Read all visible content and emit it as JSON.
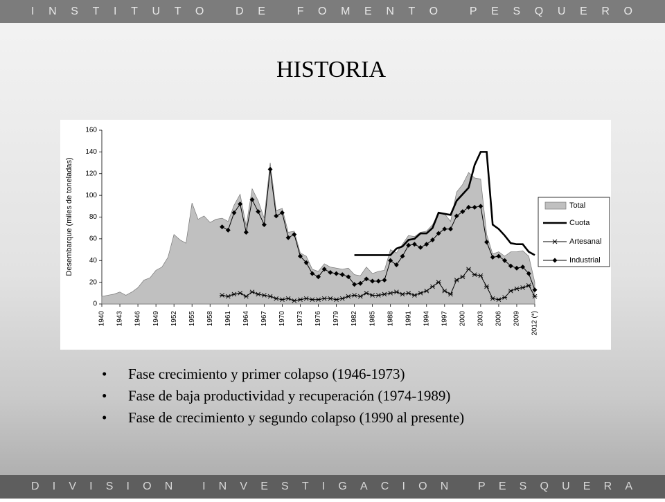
{
  "header": "INSTITUTO DE FOMENTO PESQUERO",
  "title": "HISTORIA",
  "chart_data": {
    "type": "line",
    "y_label": "Desembarque (miles de toneladas)",
    "ylim": [
      0,
      160
    ],
    "yticks": [
      0,
      20,
      40,
      60,
      80,
      100,
      120,
      140,
      160
    ],
    "grid": false,
    "legend": "right",
    "categories": [
      "1940",
      null,
      null,
      "1943",
      null,
      null,
      "1946",
      null,
      null,
      "1949",
      null,
      null,
      "1952",
      null,
      null,
      "1955",
      null,
      null,
      "1958",
      null,
      null,
      "1961",
      null,
      null,
      "1964",
      null,
      null,
      "1967",
      null,
      null,
      "1970",
      null,
      null,
      "1973",
      null,
      null,
      "1976",
      null,
      null,
      "1979",
      null,
      null,
      "1982",
      null,
      null,
      "1985",
      null,
      null,
      "1988",
      null,
      null,
      "1991",
      null,
      null,
      "1994",
      null,
      null,
      "1997",
      null,
      null,
      "2000",
      null,
      null,
      "2003",
      null,
      null,
      "2006",
      null,
      null,
      "2009",
      null,
      null,
      "2012 (*)"
    ],
    "series": [
      {
        "name": "Total",
        "type": "area",
        "color": "#c0c0c0",
        "values": [
          7,
          8,
          9,
          11,
          8,
          11,
          15,
          22,
          24,
          31,
          34,
          43,
          64,
          59,
          56,
          93,
          78,
          81,
          75,
          78,
          79,
          76,
          91,
          101,
          72,
          106,
          95,
          79,
          130,
          86,
          88,
          66,
          67,
          47,
          44,
          32,
          30,
          37,
          34,
          33,
          32,
          33,
          27,
          26,
          34,
          28,
          30,
          31,
          50,
          47,
          55,
          63,
          62,
          66,
          67,
          73,
          83,
          83,
          76,
          103,
          110,
          121,
          116,
          115,
          64,
          46,
          48,
          44,
          48,
          48,
          49,
          44,
          20
        ]
      },
      {
        "name": "Cuota",
        "type": "line",
        "color": "#000000",
        "marker": "none",
        "values": [
          null,
          null,
          null,
          null,
          null,
          null,
          null,
          null,
          null,
          null,
          null,
          null,
          null,
          null,
          null,
          null,
          null,
          null,
          null,
          null,
          null,
          null,
          null,
          null,
          null,
          null,
          null,
          null,
          null,
          null,
          null,
          null,
          null,
          null,
          null,
          null,
          null,
          null,
          null,
          null,
          null,
          null,
          45,
          45,
          45,
          45,
          45,
          45,
          45,
          51,
          53,
          59,
          60,
          65,
          65,
          70,
          84,
          83,
          82,
          95,
          101,
          107,
          128,
          140,
          140,
          73,
          69,
          63,
          56,
          55,
          55,
          48,
          45
        ]
      },
      {
        "name": "Artesanal",
        "type": "line",
        "color": "#000000",
        "marker": "star",
        "values": [
          null,
          null,
          null,
          null,
          null,
          null,
          null,
          null,
          null,
          null,
          null,
          null,
          null,
          null,
          null,
          null,
          null,
          null,
          null,
          null,
          8,
          7,
          9,
          10,
          7,
          11,
          9,
          8,
          7,
          5,
          4,
          5,
          3,
          4,
          5,
          4,
          4,
          5,
          5,
          4,
          5,
          7,
          8,
          7,
          10,
          8,
          8,
          9,
          10,
          11,
          9,
          10,
          8,
          10,
          12,
          16,
          20,
          12,
          9,
          22,
          25,
          32,
          27,
          26,
          16,
          5,
          4,
          6,
          12,
          14,
          15,
          17,
          7
        ]
      },
      {
        "name": "Industrial",
        "type": "line",
        "color": "#000000",
        "marker": "diamond",
        "values": [
          null,
          null,
          null,
          null,
          null,
          null,
          null,
          null,
          null,
          null,
          null,
          null,
          null,
          null,
          null,
          null,
          null,
          null,
          null,
          null,
          71,
          68,
          84,
          92,
          66,
          96,
          85,
          73,
          124,
          81,
          84,
          61,
          64,
          44,
          38,
          28,
          25,
          32,
          29,
          28,
          27,
          25,
          18,
          19,
          23,
          21,
          21,
          22,
          40,
          36,
          44,
          54,
          55,
          52,
          55,
          59,
          65,
          69,
          69,
          81,
          85,
          89,
          89,
          90,
          57,
          43,
          44,
          40,
          35,
          33,
          34,
          28,
          13
        ]
      }
    ]
  },
  "bullets": [
    "Fase crecimiento y primer colapso (1946-1973)",
    "Fase de baja productividad y recuperación (1974-1989)",
    "Fase de crecimiento y segundo colapso (1990 al presente)"
  ],
  "footer": "DIVISION INVESTIGACION PESQUERA"
}
